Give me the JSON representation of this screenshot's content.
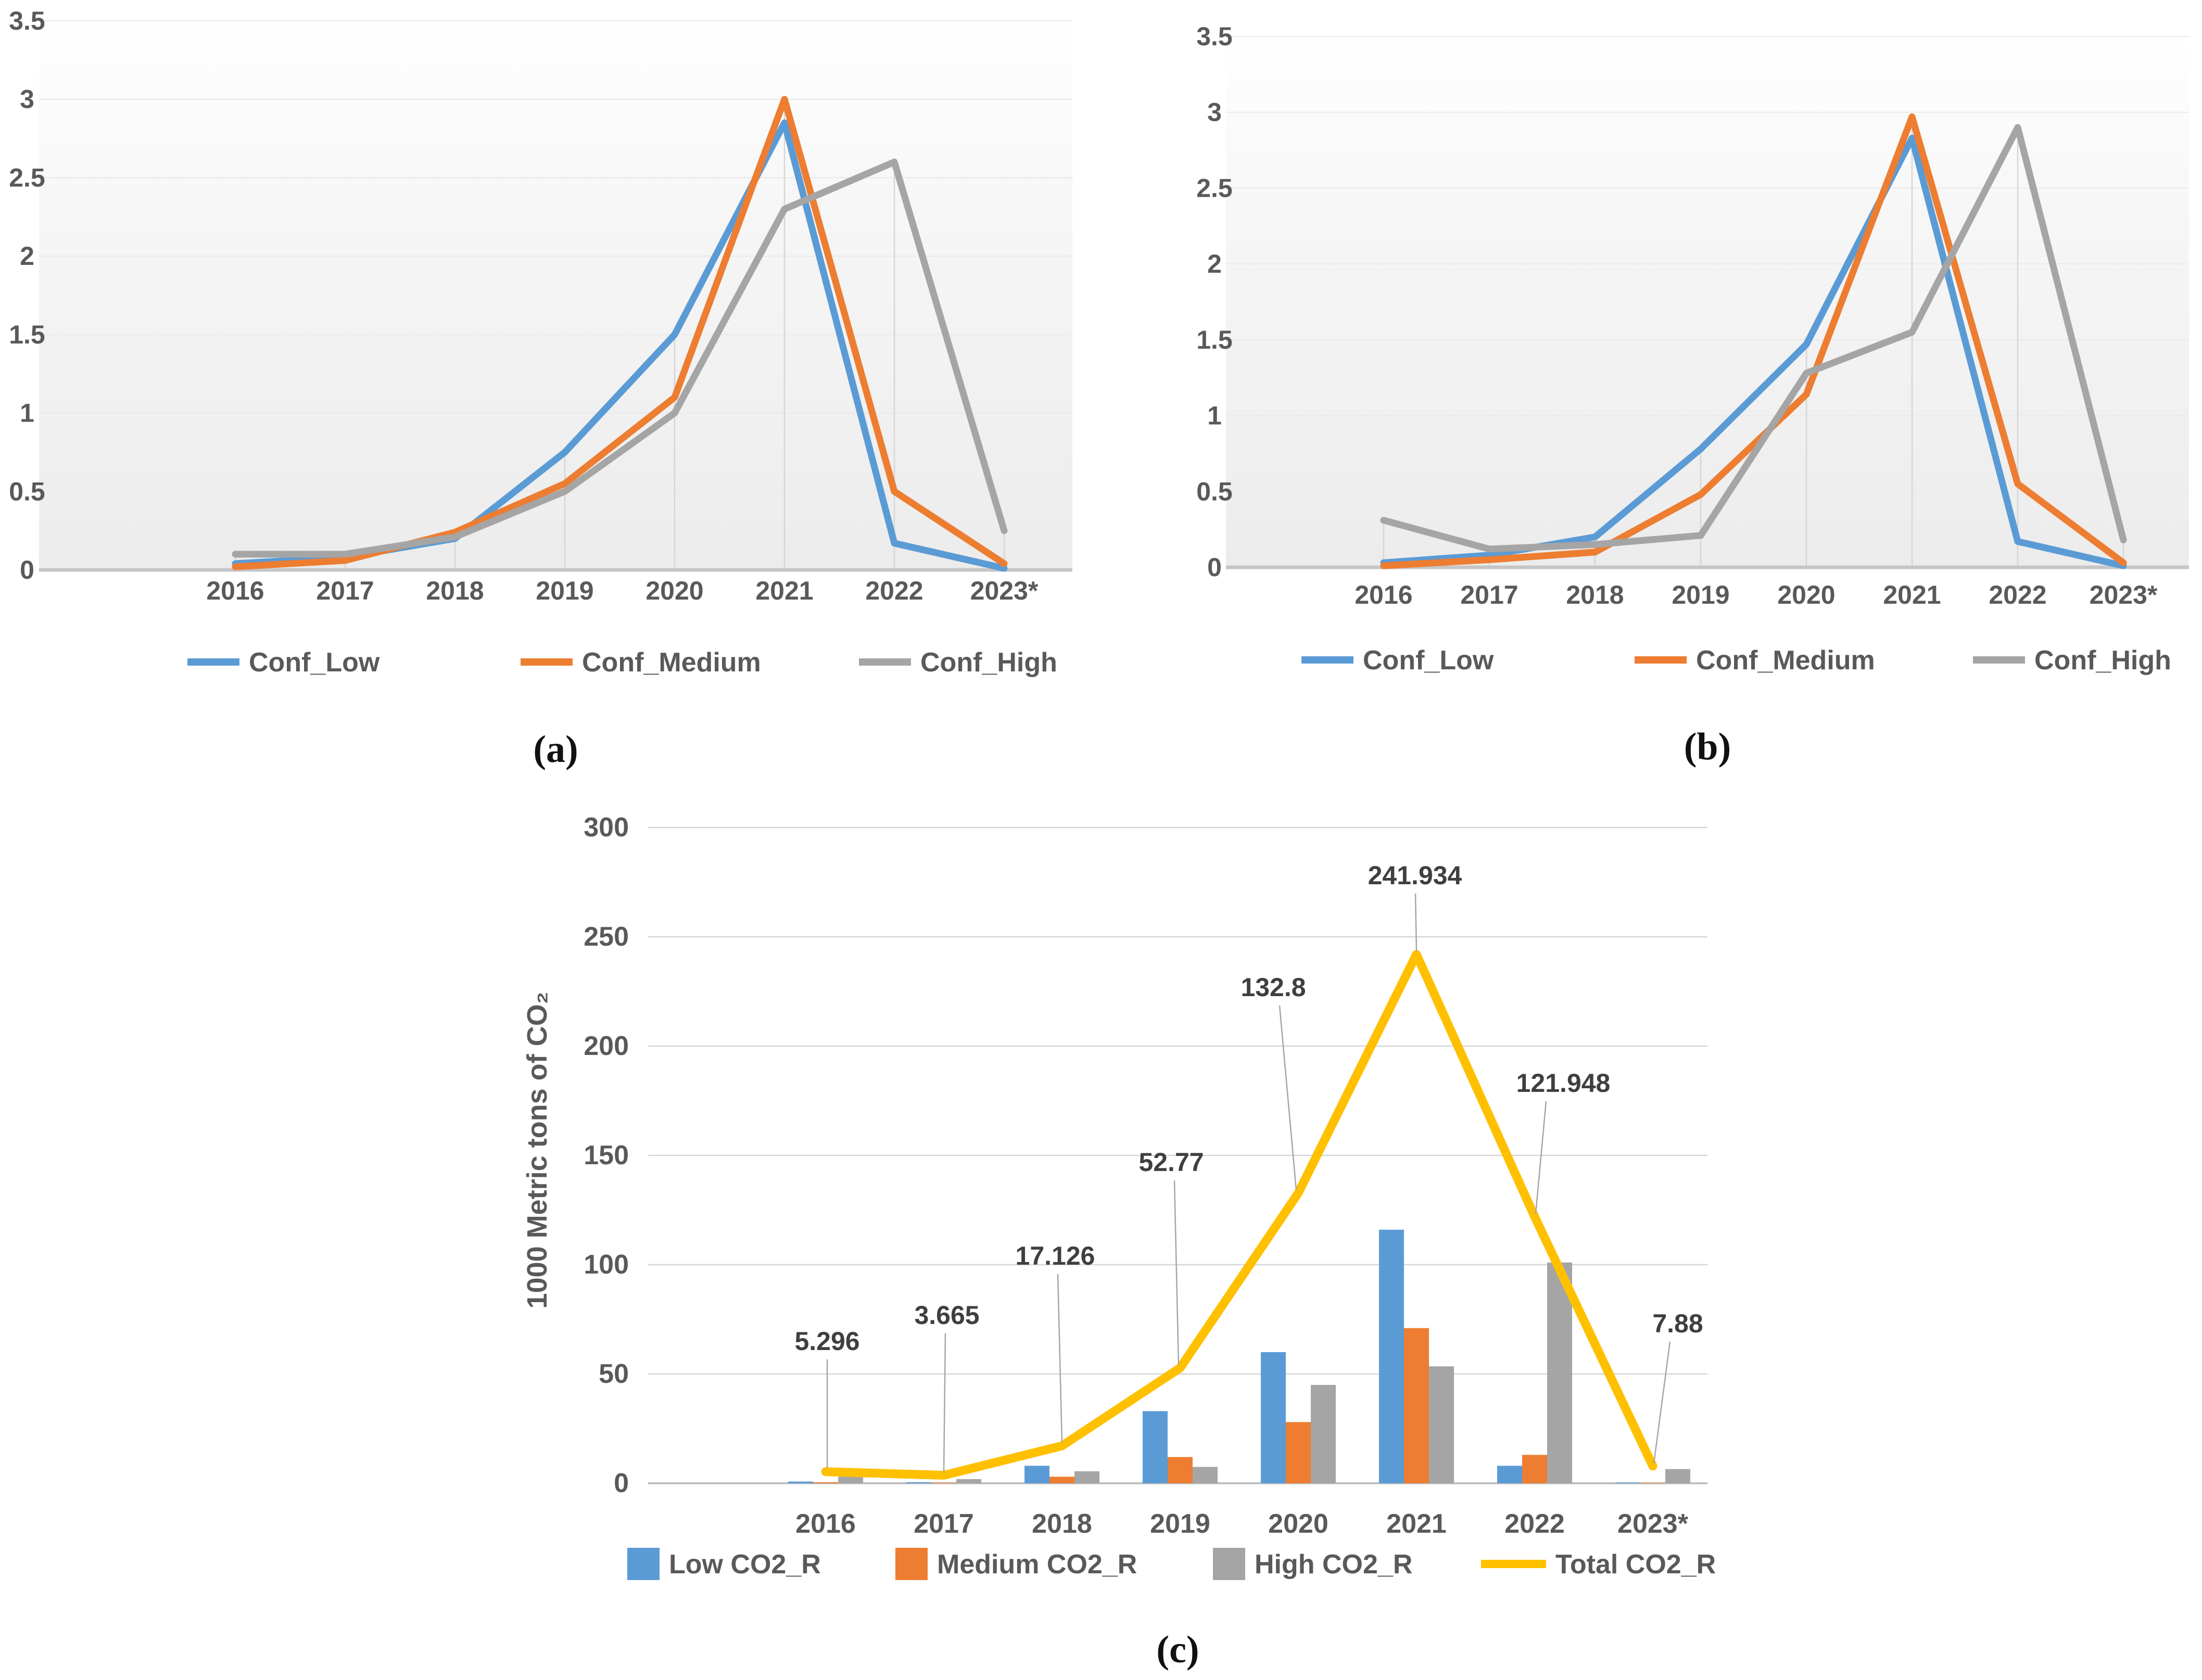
{
  "figure": {
    "background": "#FFFFFF"
  },
  "palette": {
    "series_blue": "#5B9BD5",
    "series_orange": "#ED7D31",
    "series_gray": "#A5A5A5",
    "series_yellow": "#FFC000",
    "axis_text": "#595959",
    "data_label_text": "#3F3F3F",
    "gridline_faint": "#EAEAEA",
    "gridline": "#D6D6D6",
    "axis_line": "#C6C6C6",
    "drop_line": "#D6D6D6",
    "leader_line": "#A6A6A6"
  },
  "chart_data": [
    {
      "id": "a",
      "type": "line",
      "caption": "(a)",
      "title": "",
      "xlabel": "",
      "ylabel": "",
      "categories": [
        "2016",
        "2017",
        "2018",
        "2019",
        "2020",
        "2021",
        "2022",
        "2023*"
      ],
      "ylim": [
        0,
        3.5
      ],
      "ytick_step": 0.5,
      "grid": "faint horizontal lines + vertical drop lines to series max",
      "legend_position": "bottom",
      "series": [
        {
          "name": "Conf_Low",
          "color": "series_blue",
          "values": [
            0.04,
            0.08,
            0.2,
            0.75,
            1.5,
            2.85,
            0.17,
            0.01
          ]
        },
        {
          "name": "Conf_Medium",
          "color": "series_orange",
          "values": [
            0.02,
            0.06,
            0.24,
            0.55,
            1.1,
            3.0,
            0.5,
            0.04
          ]
        },
        {
          "name": "Conf_High",
          "color": "series_gray",
          "values": [
            0.1,
            0.1,
            0.21,
            0.5,
            1.0,
            2.3,
            2.6,
            0.25
          ]
        }
      ]
    },
    {
      "id": "b",
      "type": "line",
      "caption": "(b)",
      "title": "",
      "xlabel": "",
      "ylabel": "",
      "categories": [
        "2016",
        "2017",
        "2018",
        "2019",
        "2020",
        "2021",
        "2022",
        "2023*"
      ],
      "ylim": [
        0,
        3.5
      ],
      "ytick_step": 0.5,
      "grid": "faint horizontal lines + vertical drop lines to series max",
      "legend_position": "bottom",
      "series": [
        {
          "name": "Conf_Low",
          "color": "series_blue",
          "values": [
            0.03,
            0.08,
            0.2,
            0.78,
            1.47,
            2.83,
            0.17,
            0.01
          ]
        },
        {
          "name": "Conf_Medium",
          "color": "series_orange",
          "values": [
            0.01,
            0.05,
            0.1,
            0.48,
            1.14,
            2.97,
            0.55,
            0.03
          ]
        },
        {
          "name": "Conf_High",
          "color": "series_gray",
          "values": [
            0.31,
            0.12,
            0.15,
            0.21,
            1.28,
            1.55,
            2.9,
            0.18
          ]
        }
      ]
    },
    {
      "id": "c",
      "type": "bar",
      "caption": "(c)",
      "title": "",
      "xlabel": "",
      "ylabel": "1000 Metric tons of CO₂",
      "categories": [
        "2016",
        "2017",
        "2018",
        "2019",
        "2020",
        "2021",
        "2022",
        "2023*"
      ],
      "ylim": [
        0,
        300
      ],
      "ytick_step": 50,
      "grid": "horizontal gridlines every 50",
      "legend_position": "bottom",
      "bar_series": [
        {
          "name": "Low CO2_R",
          "color": "series_blue",
          "values": [
            0.8,
            0.5,
            8,
            33,
            60,
            116,
            8,
            0.3
          ]
        },
        {
          "name": "Medium CO2_R",
          "color": "series_orange",
          "values": [
            0.5,
            0.3,
            3,
            12,
            28,
            71,
            13,
            0.2
          ]
        },
        {
          "name": "High CO2_R",
          "color": "series_gray",
          "values": [
            3.0,
            1.9,
            5.5,
            7.5,
            45,
            53.5,
            101,
            6.5
          ]
        }
      ],
      "line_series": {
        "name": "Total CO2_R",
        "color": "series_yellow",
        "values": [
          5.296,
          3.665,
          17.126,
          52.77,
          132.8,
          241.934,
          121.948,
          7.88
        ],
        "data_labels": [
          "5.296",
          "3.665",
          "17.126",
          "52.77",
          "132.8",
          "241.934",
          "121.948",
          "7.88"
        ]
      }
    }
  ]
}
